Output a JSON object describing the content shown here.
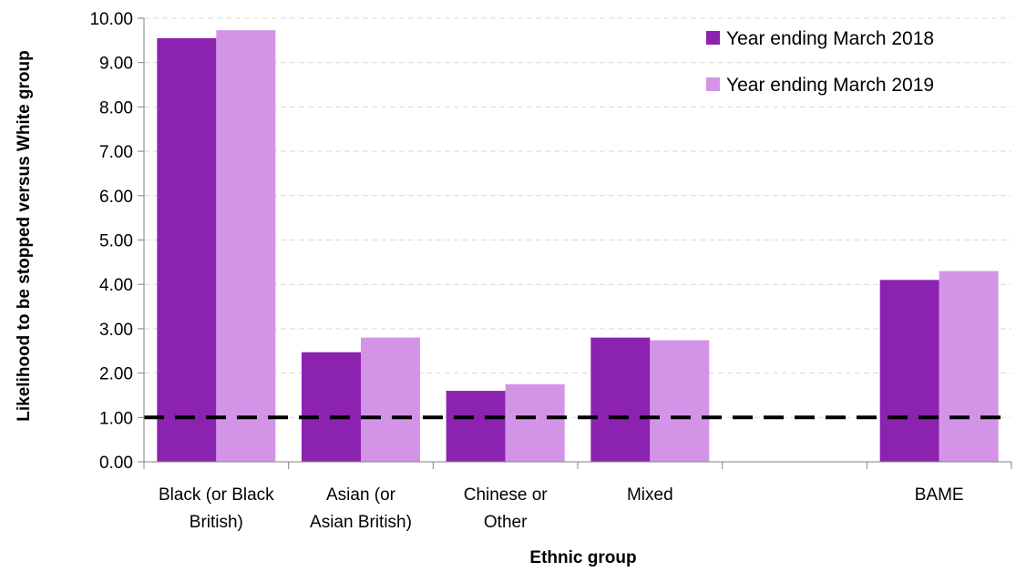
{
  "chart_data": {
    "type": "bar",
    "title": "",
    "xlabel": "Ethnic group",
    "ylabel": "Likelihood to be stopped versus White group",
    "categories": [
      [
        "Black (or Black",
        "British)"
      ],
      [
        "Asian (or",
        "Asian British)"
      ],
      [
        "Chinese or",
        "Other"
      ],
      [
        "Mixed"
      ],
      [
        ""
      ],
      [
        "BAME"
      ]
    ],
    "series": [
      {
        "name": "Year ending March 2018",
        "color": "#8b22b0",
        "values": [
          9.55,
          2.47,
          1.6,
          2.8,
          null,
          4.1
        ]
      },
      {
        "name": "Year ending March 2019",
        "color": "#d394e8",
        "values": [
          9.73,
          2.8,
          1.75,
          2.74,
          null,
          4.3
        ]
      }
    ],
    "ylim": [
      0,
      10
    ],
    "yticks": [
      "0.00",
      "1.00",
      "2.00",
      "3.00",
      "4.00",
      "5.00",
      "6.00",
      "7.00",
      "8.00",
      "9.00",
      "10.00"
    ],
    "reference_line": {
      "value": 1.0,
      "style": "dashed",
      "color": "#000000"
    },
    "grid": true,
    "legend_position": "top-right"
  }
}
